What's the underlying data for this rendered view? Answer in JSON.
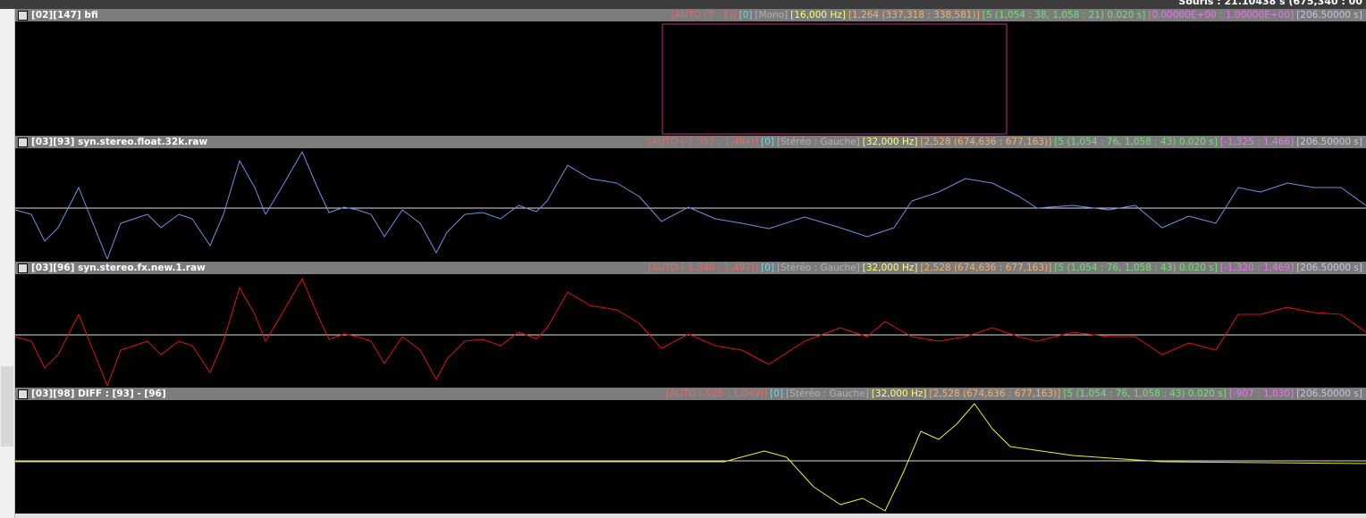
{
  "status": "Souris : 21.10438 s (675,340 : 00",
  "tracks": [
    {
      "title": "[02][147] bfi",
      "info": [
        {
          "text": "[AUTO (0 : 1)]",
          "color": "#e06a6a"
        },
        {
          "text": "[0]",
          "color": "#7fd0e0"
        },
        {
          "text": "[Mono]",
          "color": "#b0b0b0"
        },
        {
          "text": "[16,000 Hz]",
          "color": "#ffff70"
        },
        {
          "text": "[1,264 (337,318 : 338,581)]",
          "color": "#f0b070"
        },
        {
          "text": "[5 (1,054 : 38, 1,058 : 21) 0.020 s]",
          "color": "#70e070"
        },
        {
          "text": "[0.00000E+00 : 1.00000E+00]",
          "color": "#f070f0"
        },
        {
          "text": "[206.50000 s]",
          "color": "#c0c8e0"
        }
      ]
    },
    {
      "title": "[03][93] syn.stereo.float.32k.raw",
      "info": [
        {
          "text": "[AUTO (-1,353 : 1,494)]",
          "color": "#e06a6a"
        },
        {
          "text": "[0]",
          "color": "#7fd0e0"
        },
        {
          "text": "[Stéréo : Gauche]",
          "color": "#b0b0b0"
        },
        {
          "text": "[32,000 Hz]",
          "color": "#ffff70"
        },
        {
          "text": "[2,528 (674,636 : 677,163)]",
          "color": "#f0b070"
        },
        {
          "text": "[5 (1,054 : 76, 1,058 : 43) 0.020 s]",
          "color": "#70e070"
        },
        {
          "text": "[-1,325 : 1,466]",
          "color": "#f070f0"
        },
        {
          "text": "[206.50000 s]",
          "color": "#c0c8e0"
        }
      ]
    },
    {
      "title": "[03][96] syn.stereo.fx.new.1.raw",
      "info": [
        {
          "text": "[AUTO (-1,348 : 1,497)]",
          "color": "#e06a6a"
        },
        {
          "text": "[0]",
          "color": "#7fd0e0"
        },
        {
          "text": "[Stéréo : Gauche]",
          "color": "#b0b0b0"
        },
        {
          "text": "[32,000 Hz]",
          "color": "#ffff70"
        },
        {
          "text": "[2,528 (674,636 : 677,163)]",
          "color": "#f0b070"
        },
        {
          "text": "[5 (1,054 : 76, 1,058 : 43) 0.020 s]",
          "color": "#70e070"
        },
        {
          "text": "[-1,320 : 1,469]",
          "color": "#f070f0"
        },
        {
          "text": "[206.50000 s]",
          "color": "#c0c8e0"
        }
      ]
    },
    {
      "title": "[03][98] DIFF : [93] - [96]",
      "info": [
        {
          "text": "[AUTO (-926 : 1,049)]",
          "color": "#e06a6a"
        },
        {
          "text": "[0]",
          "color": "#7fd0e0"
        },
        {
          "text": "[Stéréo : Gauche]",
          "color": "#b0b0b0"
        },
        {
          "text": "[32,000 Hz]",
          "color": "#ffff70"
        },
        {
          "text": "[2,528 (674,636 : 677,163)]",
          "color": "#f0b070"
        },
        {
          "text": "[5 (1,054 : 76, 1,058 : 43) 0.020 s]",
          "color": "#70e070"
        },
        {
          "text": "[-907 : 1,030]",
          "color": "#f070f0"
        },
        {
          "text": "[206.50000 s]",
          "color": "#c0c8e0"
        }
      ]
    }
  ]
}
